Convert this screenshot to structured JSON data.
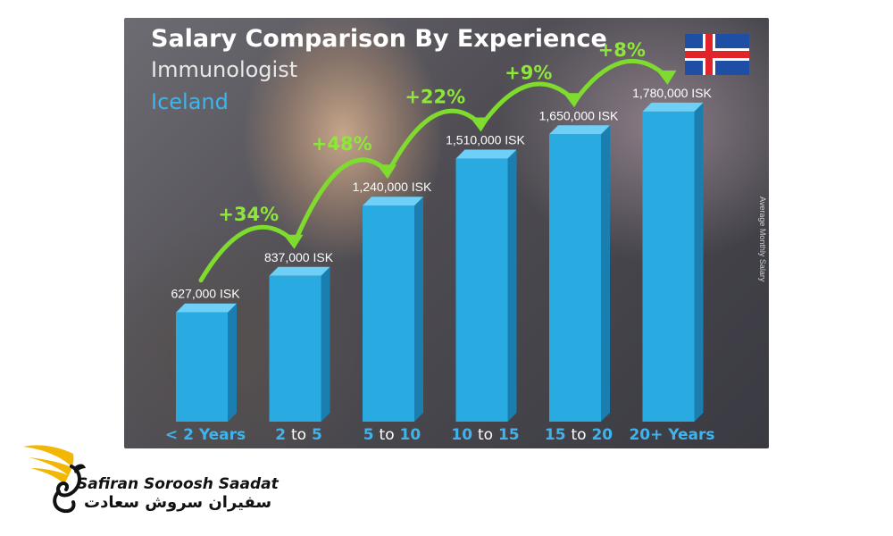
{
  "chart_data": {
    "type": "bar",
    "title": "Salary Comparison By Experience",
    "subtitle": "Immunologist",
    "country": "Iceland",
    "ylabel": "Average Monthly Salary",
    "categories": [
      {
        "main": "< 2 Years",
        "to": ""
      },
      {
        "main": "2",
        "to": "to",
        "end": "5"
      },
      {
        "main": "5",
        "to": "to",
        "end": "10"
      },
      {
        "main": "10",
        "to": "to",
        "end": "15"
      },
      {
        "main": "15",
        "to": "to",
        "end": "20"
      },
      {
        "main": "20+ Years",
        "to": ""
      }
    ],
    "values": [
      627000,
      837000,
      1240000,
      1510000,
      1650000,
      1780000
    ],
    "value_labels": [
      "627,000 ISK",
      "837,000 ISK",
      "1,240,000 ISK",
      "1,510,000 ISK",
      "1,650,000 ISK",
      "1,780,000 ISK"
    ],
    "increase_labels": [
      "+34%",
      "+48%",
      "+22%",
      "+9%",
      "+8%"
    ],
    "ylim": [
      0,
      2000000
    ],
    "grid": false,
    "colors": {
      "bar": "#29abe2",
      "bar_side": "#1a7fb0",
      "bar_top": "#6fd0f7",
      "increase": "#7fdc2e"
    }
  },
  "flag_icon": "iceland-flag-icon",
  "logo": {
    "icon": "griffin-wing-logo-icon",
    "name_en": "Safiran Soroosh Saadat",
    "name_fa": "سفیران سروش سعادت",
    "colors": {
      "wing": "#f2b705",
      "text": "#111111"
    }
  }
}
